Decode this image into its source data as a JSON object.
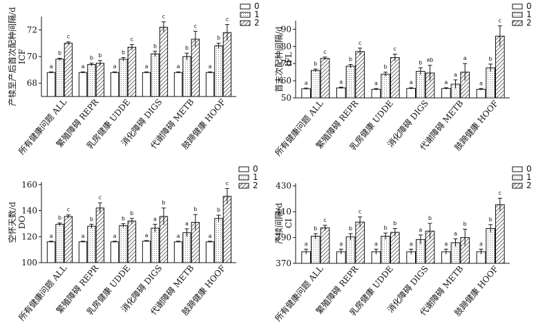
{
  "chart_data": [
    {
      "type": "bar",
      "ylabel": [
        "产犊至产后首次配种间隔/d",
        "ICF"
      ],
      "ylim": [
        67,
        73
      ],
      "yticks": [
        68,
        70,
        72
      ],
      "categories": [
        "所有健康问题 ALL",
        "繁殖障碍 REPR",
        "乳房健康 UDDE",
        "消化障碍 DIGS",
        "代谢障碍 METB",
        "肢蹄健康 HOOF"
      ],
      "legend": [
        "0",
        "1",
        "2"
      ],
      "legend_position": "top-right",
      "series": [
        {
          "name": "0",
          "values": [
            68.8,
            68.8,
            68.8,
            68.8,
            68.8,
            68.8
          ],
          "errors": [
            0.05,
            0.05,
            0.05,
            0.05,
            0.05,
            0.05
          ],
          "labels": [
            "a",
            "a",
            "a",
            "a",
            "a",
            "a"
          ]
        },
        {
          "name": "1",
          "values": [
            69.8,
            69.4,
            69.8,
            70.2,
            70.0,
            70.8
          ],
          "errors": [
            0.07,
            0.1,
            0.12,
            0.2,
            0.25,
            0.2
          ],
          "labels": [
            "b",
            "b",
            "b",
            "b",
            "b",
            "b"
          ]
        },
        {
          "name": "2",
          "values": [
            71.0,
            69.5,
            70.7,
            72.2,
            71.3,
            71.8
          ],
          "errors": [
            0.1,
            0.2,
            0.2,
            0.4,
            0.6,
            0.6
          ],
          "labels": [
            "c",
            "b",
            "c",
            "c",
            "c",
            "c"
          ]
        }
      ]
    },
    {
      "type": "bar",
      "ylabel": [
        "首末次配种间隔/d",
        "IFL"
      ],
      "ylim": [
        50,
        95
      ],
      "yticks": [
        50,
        60,
        70,
        80,
        90
      ],
      "categories": [
        "所有健康问题 ALL",
        "繁殖障碍 REPR",
        "乳房健康 UDDE",
        "消化障碍 DIGS",
        "代谢障碍 METB",
        "肢蹄健康 HOOF"
      ],
      "legend": [
        "0",
        "1",
        "2"
      ],
      "legend_position": "top-right",
      "series": [
        {
          "name": "0",
          "values": [
            55.3,
            55.8,
            55.0,
            55.5,
            55.5,
            55.0
          ],
          "errors": [
            0.4,
            0.5,
            0.5,
            0.5,
            0.5,
            0.5
          ],
          "labels": [
            "a",
            "a",
            "a",
            "a",
            "a",
            "a"
          ]
        },
        {
          "name": "1",
          "values": [
            66.0,
            68.5,
            63.8,
            65.5,
            58.0,
            67.5
          ],
          "errors": [
            0.8,
            1.0,
            1.2,
            2.0,
            2.5,
            2.2
          ],
          "labels": [
            "b",
            "b",
            "b",
            "b",
            "a",
            "b"
          ]
        },
        {
          "name": "2",
          "values": [
            73.0,
            77.0,
            73.5,
            64.5,
            65.0,
            86.0
          ],
          "errors": [
            0.8,
            2.0,
            2.0,
            4.5,
            5.0,
            6.0
          ],
          "labels": [
            "c",
            "c",
            "c",
            "ab",
            "a",
            "c"
          ]
        }
      ]
    },
    {
      "type": "bar",
      "ylabel": [
        "空怀天数/d",
        "DO"
      ],
      "ylim": [
        100,
        162
      ],
      "yticks": [
        100,
        120,
        140,
        160
      ],
      "categories": [
        "所有健康问题 ALL",
        "繁殖障碍 REPR",
        "乳房健康 UDDE",
        "消化障碍 DIGS",
        "代谢障碍 METB",
        "肢蹄健康 HOOF"
      ],
      "legend": [
        "0",
        "1",
        "2"
      ],
      "legend_position": "top-right",
      "series": [
        {
          "name": "0",
          "values": [
            116.0,
            116.0,
            116.0,
            116.5,
            116.0,
            116.0
          ],
          "errors": [
            0.5,
            0.5,
            0.5,
            0.5,
            0.5,
            0.5
          ],
          "labels": [
            "a",
            "a",
            "a",
            "a",
            "a",
            "a"
          ]
        },
        {
          "name": "1",
          "values": [
            129.5,
            128.0,
            128.5,
            126.5,
            123.0,
            134.0
          ],
          "errors": [
            1.0,
            1.5,
            1.5,
            3.0,
            3.0,
            2.5
          ],
          "labels": [
            "b",
            "b",
            "b",
            "a",
            "a",
            "b"
          ]
        },
        {
          "name": "2",
          "values": [
            135.5,
            142.0,
            132.0,
            135.5,
            131.0,
            151.0
          ],
          "errors": [
            1.2,
            4.0,
            2.0,
            6.5,
            6.0,
            6.0
          ],
          "labels": [
            "c",
            "c",
            "b",
            "b",
            "b",
            "c"
          ]
        }
      ]
    },
    {
      "type": "bar",
      "ylabel": [
        "产犊间隔/d",
        "CI"
      ],
      "ylim": [
        370,
        432
      ],
      "yticks": [
        370,
        390,
        410,
        430
      ],
      "categories": [
        "所有健康问题 ALL",
        "繁殖障碍 REPR",
        "乳房健康 UDDE",
        "消化障碍 DIGS",
        "代谢障碍 METB",
        "肢蹄健康 HOOF"
      ],
      "legend": [
        "0",
        "1",
        "2"
      ],
      "legend_position": "top-right",
      "series": [
        {
          "name": "0",
          "values": [
            379.0,
            379.0,
            379.0,
            379.0,
            379.0,
            379.0
          ],
          "errors": [
            2.0,
            2.0,
            2.0,
            2.0,
            2.0,
            2.0
          ],
          "labels": [
            "a",
            "a",
            "a",
            "a",
            "a",
            "a"
          ]
        },
        {
          "name": "1",
          "values": [
            391.0,
            390.5,
            391.0,
            388.5,
            386.0,
            397.0
          ],
          "errors": [
            2.0,
            2.5,
            2.5,
            3.5,
            3.0,
            3.0
          ],
          "labels": [
            "b",
            "b",
            "b",
            "a",
            "a",
            "b"
          ]
        },
        {
          "name": "2",
          "values": [
            397.5,
            402.0,
            394.0,
            395.0,
            390.0,
            415.5
          ],
          "errors": [
            2.0,
            4.0,
            3.0,
            6.0,
            6.5,
            5.0
          ],
          "labels": [
            "c",
            "c",
            "b",
            "b",
            "b",
            "c"
          ]
        }
      ]
    }
  ]
}
